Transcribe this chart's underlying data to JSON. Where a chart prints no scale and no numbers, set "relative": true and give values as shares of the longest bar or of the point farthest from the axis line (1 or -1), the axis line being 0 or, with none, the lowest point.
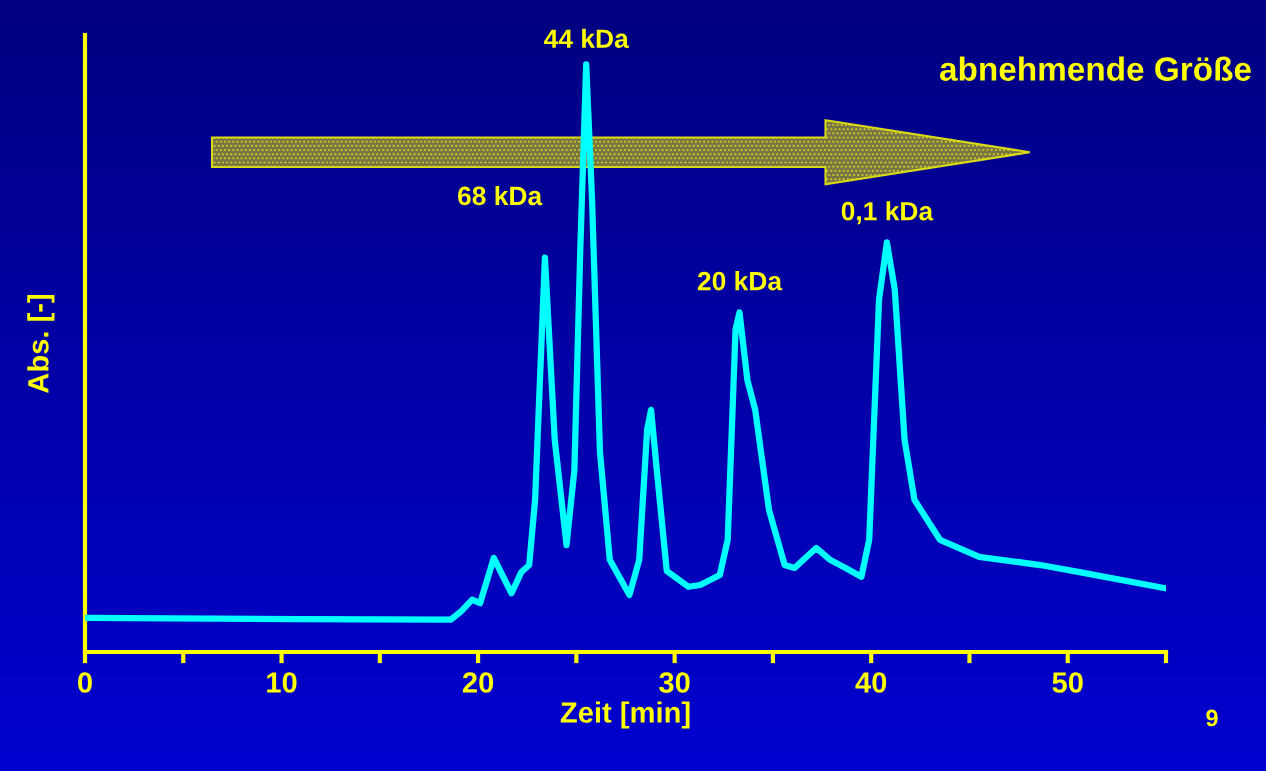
{
  "chart_data": {
    "type": "line",
    "relative": true,
    "xlabel": "Zeit [min]",
    "ylabel": "Abs. [-]",
    "x": [
      0,
      10.9,
      18.6,
      19.1,
      19.7,
      20.1,
      20.8,
      21.7,
      22.2,
      22.6,
      22.9,
      23.4,
      23.9,
      24.5,
      24.9,
      25.2,
      25.5,
      25.8,
      26.2,
      26.7,
      27.7,
      28.2,
      28.6,
      28.8,
      29.1,
      29.6,
      30.7,
      31.3,
      32.3,
      32.7,
      33.1,
      33.3,
      33.7,
      34.1,
      34.8,
      35.6,
      36.1,
      37.2,
      37.9,
      38.7,
      39.5,
      39.9,
      40.4,
      40.8,
      41.2,
      41.7,
      42.2,
      43.5,
      45.5,
      48.6,
      50.6,
      54.9
    ],
    "series": [
      {
        "color": "#00ffff",
        "values": [
          0.058,
          0.056,
          0.055,
          0.068,
          0.089,
          0.083,
          0.16,
          0.1,
          0.136,
          0.148,
          0.259,
          0.671,
          0.361,
          0.182,
          0.31,
          0.685,
          1.0,
          0.768,
          0.341,
          0.157,
          0.097,
          0.157,
          0.378,
          0.412,
          0.307,
          0.138,
          0.111,
          0.114,
          0.131,
          0.191,
          0.549,
          0.578,
          0.463,
          0.412,
          0.242,
          0.148,
          0.143,
          0.177,
          0.157,
          0.143,
          0.128,
          0.191,
          0.6,
          0.697,
          0.617,
          0.361,
          0.259,
          0.191,
          0.162,
          0.148,
          0.136,
          0.109
        ]
      }
    ],
    "xlim": [
      0,
      55
    ],
    "xticks": [
      0,
      {
        "value": 5,
        "label": null
      },
      10,
      {
        "value": 15,
        "label": null
      },
      20,
      {
        "value": 25,
        "label": null
      },
      30,
      {
        "value": 35,
        "label": null
      },
      40,
      {
        "value": 45,
        "label": null
      },
      50,
      {
        "value": 55,
        "label": null
      }
    ],
    "grid": false,
    "legend": false,
    "marker": "none",
    "line_style": "solid",
    "annotations": [
      {
        "text": "44 kDa",
        "x": 25.5,
        "y": 1.0
      },
      {
        "text": "68 kDa",
        "x": 23.4,
        "y": 0.671
      },
      {
        "text": "20 kDa",
        "x": 33.3,
        "y": 0.578
      },
      {
        "text": "0,1 kDa",
        "x": 40.8,
        "y": 0.697
      },
      "abnehmende Größe",
      "9"
    ]
  }
}
